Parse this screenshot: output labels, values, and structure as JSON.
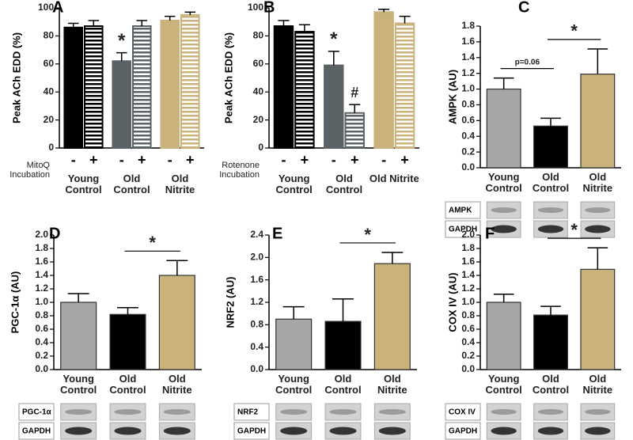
{
  "chart_data": [
    {
      "type": "grouped-bar",
      "panel": "A",
      "ylabel": "Peak ACh EDD (%)",
      "ylim": [
        0,
        100
      ],
      "yticks": [
        0,
        20,
        40,
        60,
        80,
        100
      ],
      "groups": [
        "Young Control",
        "Old Control",
        "Old Nitrite"
      ],
      "colors": [
        "#000000",
        "#5b6266",
        "#c9b27c"
      ],
      "condition_label": "MitoQ Incubation",
      "series": [
        {
          "name": "-",
          "pattern": "solid",
          "values": [
            86,
            62,
            91
          ],
          "errors": [
            3,
            6,
            3
          ]
        },
        {
          "name": "+",
          "pattern": "stripes",
          "values": [
            87,
            87,
            95
          ],
          "errors": [
            4,
            4,
            2
          ]
        }
      ],
      "annotations": [
        {
          "text": "*",
          "group": 1,
          "series": 0
        }
      ]
    },
    {
      "type": "grouped-bar",
      "panel": "B",
      "ylabel": "Peak ACh EDD (%)",
      "ylim": [
        0,
        100
      ],
      "yticks": [
        0,
        20,
        40,
        60,
        80,
        100
      ],
      "groups": [
        "Young Control",
        "Old Control",
        "Old Nitrite"
      ],
      "colors": [
        "#000000",
        "#5b6266",
        "#c9b27c"
      ],
      "condition_label": "Rotenone Incubation",
      "series": [
        {
          "name": "-",
          "pattern": "solid",
          "values": [
            87,
            59,
            97
          ],
          "errors": [
            4,
            10,
            2
          ]
        },
        {
          "name": "+",
          "pattern": "stripes",
          "values": [
            83,
            25,
            89
          ],
          "errors": [
            5,
            6,
            5
          ]
        }
      ],
      "annotations": [
        {
          "text": "*",
          "group": 1,
          "series": 0
        },
        {
          "text": "#",
          "group": 1,
          "series": 1
        }
      ]
    },
    {
      "type": "bar",
      "panel": "C",
      "ylabel": "AMPK (AU)",
      "ylim": [
        0,
        1.8
      ],
      "yticks": [
        {
          "value": 0,
          "label": "0.0"
        },
        0.2,
        0.4,
        0.6,
        0.8,
        {
          "value": 1,
          "label": "1.0"
        },
        1.2,
        1.4,
        1.6,
        1.8
      ],
      "categories": [
        "Young Control",
        "Old Control",
        "Old Nitrite"
      ],
      "colors": [
        "#a6a6a6",
        "#000000",
        "#c9b27c"
      ],
      "values": [
        1.0,
        0.53,
        1.19
      ],
      "errors": [
        0.14,
        0.1,
        0.32
      ],
      "annotations": [
        {
          "text": "p=0.06",
          "from": 0,
          "to": 1
        },
        {
          "text": "*",
          "from": 1,
          "to": 2
        }
      ],
      "blot_labels": [
        "AMPK",
        "GAPDH"
      ]
    },
    {
      "type": "bar",
      "panel": "D",
      "ylabel": "PGC-1α (AU)",
      "ylim": [
        0,
        2.0
      ],
      "yticks": [
        {
          "value": 0,
          "label": "0.0"
        },
        0.2,
        0.4,
        0.6,
        0.8,
        {
          "value": 1,
          "label": "1.0"
        },
        1.2,
        1.4,
        1.6,
        1.8,
        {
          "value": 2,
          "label": "2.0"
        }
      ],
      "categories": [
        "Young Control",
        "Old Control",
        "Old Nitrite"
      ],
      "colors": [
        "#a6a6a6",
        "#000000",
        "#c9b27c"
      ],
      "values": [
        1.0,
        0.82,
        1.4
      ],
      "errors": [
        0.13,
        0.1,
        0.22
      ],
      "annotations": [
        {
          "text": "*",
          "from": 1,
          "to": 2
        }
      ],
      "blot_labels": [
        "PGC-1α",
        "GAPDH"
      ]
    },
    {
      "type": "bar",
      "panel": "E",
      "ylabel": "NRF2 (AU)",
      "ylim": [
        0,
        2.4
      ],
      "yticks": [
        {
          "value": 0,
          "label": "0.0"
        },
        0.4,
        0.8,
        1.2,
        1.6,
        {
          "value": 2,
          "label": "2.0"
        },
        2.4
      ],
      "categories": [
        "Young Control",
        "Old Control",
        "Old Nitrite"
      ],
      "colors": [
        "#a6a6a6",
        "#000000",
        "#c9b27c"
      ],
      "values": [
        0.9,
        0.86,
        1.89
      ],
      "errors": [
        0.22,
        0.4,
        0.2
      ],
      "annotations": [
        {
          "text": "*",
          "from": 1,
          "to": 2
        }
      ],
      "blot_labels": [
        "NRF2",
        "GAPDH"
      ]
    },
    {
      "type": "bar",
      "panel": "F",
      "ylabel": "COX IV (AU)",
      "ylim": [
        0,
        2.0
      ],
      "yticks": [
        {
          "value": 0,
          "label": "0.0"
        },
        0.2,
        0.4,
        0.6,
        0.8,
        {
          "value": 1,
          "label": "1.0"
        },
        1.2,
        1.4,
        1.6,
        1.8,
        {
          "value": 2,
          "label": "2.0"
        }
      ],
      "categories": [
        "Young Control",
        "Old Control",
        "Old Nitrite"
      ],
      "colors": [
        "#a6a6a6",
        "#000000",
        "#c9b27c"
      ],
      "values": [
        1.0,
        0.81,
        1.49
      ],
      "errors": [
        0.12,
        0.13,
        0.32
      ],
      "annotations": [
        {
          "text": "*",
          "from": 1,
          "to": 2
        }
      ],
      "blot_labels": [
        "COX IV",
        "GAPDH"
      ]
    }
  ]
}
